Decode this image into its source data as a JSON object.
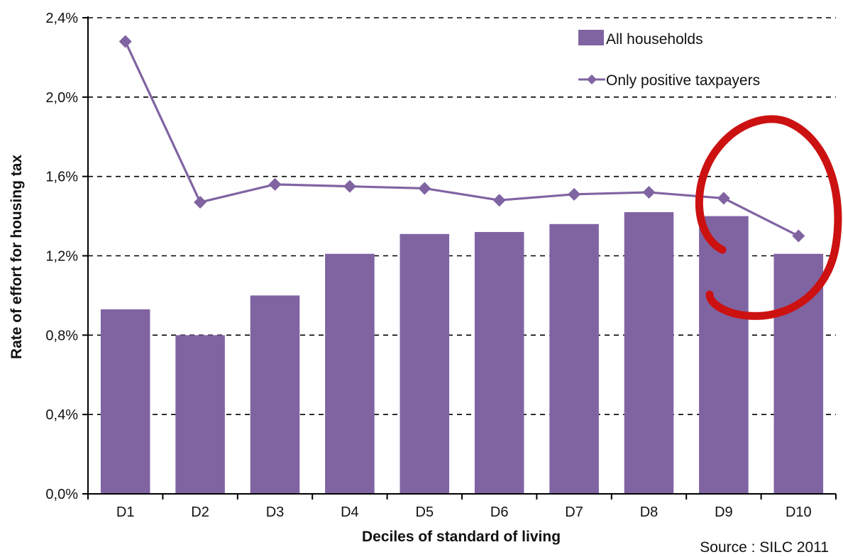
{
  "chart_data": {
    "type": "bar",
    "categories": [
      "D1",
      "D2",
      "D3",
      "D4",
      "D5",
      "D6",
      "D7",
      "D8",
      "D9",
      "D10"
    ],
    "series": [
      {
        "name": "All households",
        "type": "bar",
        "values": [
          0.93,
          0.8,
          1.0,
          1.21,
          1.31,
          1.32,
          1.36,
          1.42,
          1.4,
          1.21
        ],
        "color": "#8064a2"
      },
      {
        "name": "Only positive taxpayers",
        "type": "line",
        "marker": "diamond",
        "values": [
          2.28,
          1.47,
          1.56,
          1.55,
          1.54,
          1.48,
          1.51,
          1.52,
          1.49,
          1.3
        ],
        "color": "#8064a2"
      }
    ],
    "xlabel": "Deciles of standard of living",
    "ylabel": "Rate of effort for housing tax",
    "ylim": [
      0,
      2.4
    ],
    "yticks": [
      "0,0%",
      "0,4%",
      "0,8%",
      "1,2%",
      "1,6%",
      "2,0%",
      "2,4%"
    ],
    "grid": "horizontal dashed",
    "legend_position": "top-right",
    "source_note": "Source : SILC 2011",
    "annotation": {
      "shape": "hand-drawn circle",
      "around": "D9–D10",
      "color": "#cc1111"
    }
  }
}
